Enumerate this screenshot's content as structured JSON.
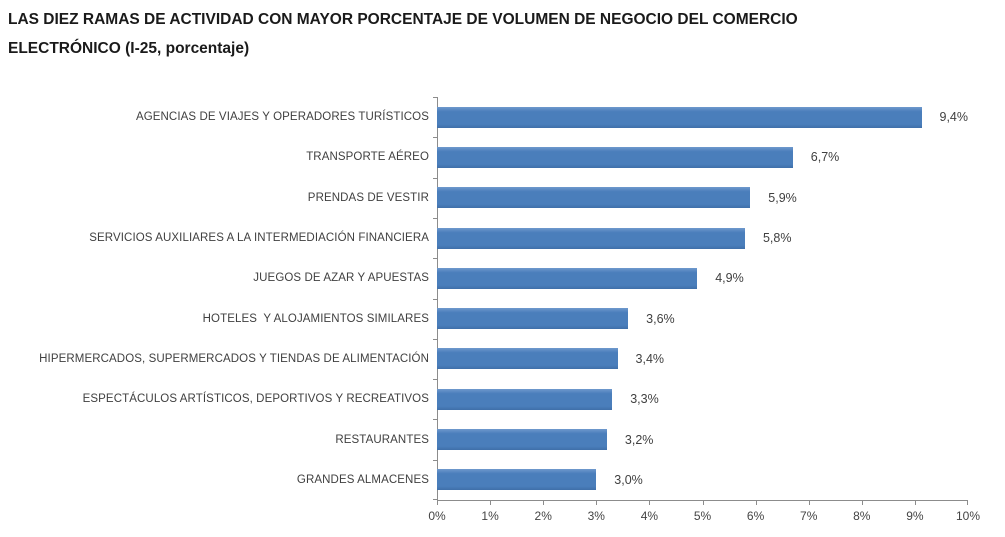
{
  "title": {
    "line1": "LAS DIEZ RAMAS DE ACTIVIDAD CON MAYOR PORCENTAJE DE VOLUMEN DE NEGOCIO DEL COMERCIO",
    "line2": "ELECTRÓNICO (I-25, porcentaje)"
  },
  "chart_data": {
    "type": "bar",
    "orientation": "horizontal",
    "title": "LAS DIEZ RAMAS DE ACTIVIDAD CON MAYOR PORCENTAJE DE VOLUMEN DE NEGOCIO DEL COMERCIO ELECTRÓNICO (I-25, porcentaje)",
    "categories": [
      "AGENCIAS DE VIAJES Y OPERADORES TURÍSTICOS",
      "TRANSPORTE AÉREO",
      "PRENDAS DE VESTIR",
      "SERVICIOS AUXILIARES A LA INTERMEDIACIÓN FINANCIERA",
      "JUEGOS DE AZAR Y APUESTAS",
      "HOTELES  Y ALOJAMIENTOS SIMILARES",
      "HIPERMERCADOS, SUPERMERCADOS Y TIENDAS DE ALIMENTACIÓN",
      "ESPECTÁCULOS ARTÍSTICOS, DEPORTIVOS Y RECREATIVOS",
      "RESTAURANTES",
      "GRANDES ALMACENES"
    ],
    "values": [
      9.4,
      6.7,
      5.9,
      5.8,
      4.9,
      3.6,
      3.4,
      3.3,
      3.2,
      3.0
    ],
    "value_labels": [
      "9,4%",
      "6,7%",
      "5,9%",
      "5,8%",
      "4,9%",
      "3,6%",
      "3,4%",
      "3,3%",
      "3,2%",
      "3,0%"
    ],
    "xlabel": "",
    "ylabel": "",
    "xlim": [
      0,
      10
    ],
    "x_ticks": [
      "0%",
      "1%",
      "2%",
      "3%",
      "4%",
      "5%",
      "6%",
      "7%",
      "8%",
      "9%",
      "10%"
    ],
    "grid": false,
    "legend": false,
    "colors": {
      "bar": "#4a7ebb",
      "axis": "#8c8c8c",
      "category_label": "#404040",
      "value_label": "#404040",
      "tick_label": "#444444",
      "title": "#1a1a1a"
    }
  }
}
